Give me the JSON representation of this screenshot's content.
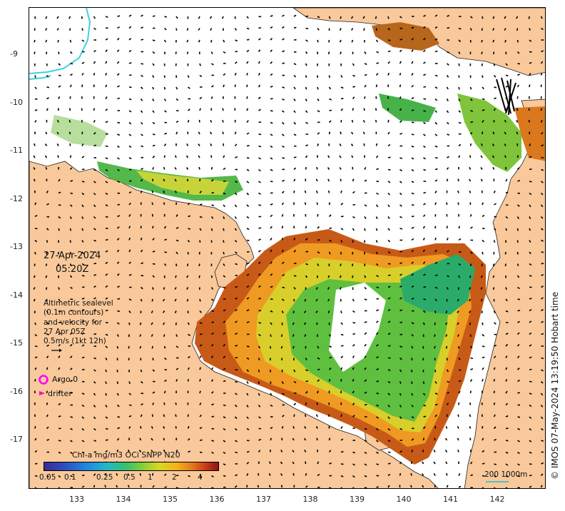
{
  "date": "27-Apr-2024",
  "time": "05:20Z",
  "legend": {
    "line1": "Altimetric sealevel",
    "line2": "(0.1m contours)",
    "line3": "and velocity for",
    "line4": "27 Apr 05Z",
    "line5": "0.5m/s (1kt 12h)",
    "argo_label": "Argo 0",
    "drifter_label": "drifter"
  },
  "colorbar": {
    "title": "Chl-a mg/m3 OCi SNPP N20",
    "ticks": [
      "0.05",
      "0.1",
      "0.25",
      "0.5",
      "1",
      "2",
      "4"
    ]
  },
  "x_axis": {
    "ticks": [
      "133",
      "134",
      "135",
      "136",
      "137",
      "138",
      "139",
      "140",
      "141",
      "142"
    ]
  },
  "y_axis": {
    "ticks": [
      "-9",
      "-10",
      "-11",
      "-12",
      "-13",
      "-14",
      "-15",
      "-16",
      "-17"
    ]
  },
  "credit": "© IMOS 07-May-2024 13:19:50 Hobart time",
  "scale_label": "200  1000m",
  "colors": {
    "land": "#f9c99b",
    "coast": "#222222",
    "chl_high": "#a63a12",
    "chl_mid": "#e07a18",
    "chl_low": "#33b24a",
    "argo": "#ff00ff",
    "drifter": "#ff00cc",
    "shelf_contour": "#3fd0e0"
  }
}
